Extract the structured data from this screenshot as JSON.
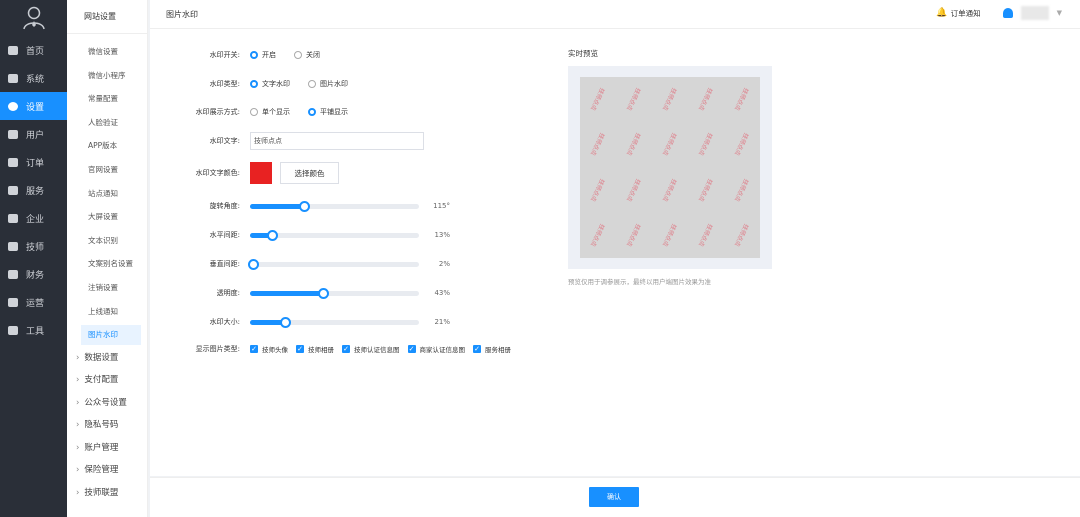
{
  "nav": {
    "items": [
      {
        "label": "首页",
        "icon": "monitor-icon"
      },
      {
        "label": "系统",
        "icon": "sitemap-icon"
      },
      {
        "label": "设置",
        "icon": "gear-icon",
        "active": true
      },
      {
        "label": "用户",
        "icon": "user-icon"
      },
      {
        "label": "订单",
        "icon": "order-icon"
      },
      {
        "label": "服务",
        "icon": "link-icon"
      },
      {
        "label": "企业",
        "icon": "building-icon"
      },
      {
        "label": "技师",
        "icon": "user-icon"
      },
      {
        "label": "财务",
        "icon": "sitemap-icon"
      },
      {
        "label": "运营",
        "icon": "chart-icon"
      },
      {
        "label": "工具",
        "icon": "briefcase-icon"
      }
    ]
  },
  "sub": {
    "title": "网站设置",
    "items": [
      "微信设置",
      "微信小程序",
      "常量配置",
      "人脸验证",
      "APP版本",
      "官网设置",
      "站点通知",
      "大屏设置",
      "文本识别",
      "文案别名设置",
      "注销设置",
      "上线通知",
      "图片水印"
    ],
    "active": "图片水印",
    "groups": [
      "数据设置",
      "支付配置",
      "公众号设置",
      "隐私号码",
      "账户管理",
      "保险管理",
      "技师联盟"
    ]
  },
  "header": {
    "title": "图片水印",
    "notify": "订单通知"
  },
  "form": {
    "switch": {
      "label": "水印开关:",
      "options": [
        "开启",
        "关闭"
      ],
      "selected": 0
    },
    "type": {
      "label": "水印类型:",
      "options": [
        "文字水印",
        "图片水印"
      ],
      "selected": 0
    },
    "mode": {
      "label": "水印展示方式:",
      "options": [
        "单个显示",
        "平铺显示"
      ],
      "selected": 1
    },
    "text": {
      "label": "水印文字:",
      "value": "技师点点"
    },
    "color": {
      "label": "水印文字颜色:",
      "value": "#e82222",
      "button": "选择颜色"
    },
    "sliders": [
      {
        "label": "旋转角度:",
        "value": 115,
        "max": 360,
        "display": "115°"
      },
      {
        "label": "水平间距:",
        "value": 13,
        "max": 100,
        "display": "13%"
      },
      {
        "label": "垂直间距:",
        "value": 2,
        "max": 100,
        "display": "2%"
      },
      {
        "label": "透明度:",
        "value": 43,
        "max": 100,
        "display": "43%"
      },
      {
        "label": "水印大小:",
        "value": 21,
        "max": 100,
        "display": "21%"
      }
    ],
    "types": {
      "label": "显示图片类型:",
      "options": [
        "技师头像",
        "技师相册",
        "技师认证信息图",
        "商家认证信息图",
        "服务相册"
      ]
    }
  },
  "preview": {
    "title": "实时预览",
    "note": "预览仅用于调参展示，最终以用户端图片效果为准",
    "watermark": "技师点点"
  },
  "footer": {
    "confirm": "确认"
  },
  "colors": {
    "accent": "#1890ff",
    "sidebar": "#2a2f38"
  }
}
